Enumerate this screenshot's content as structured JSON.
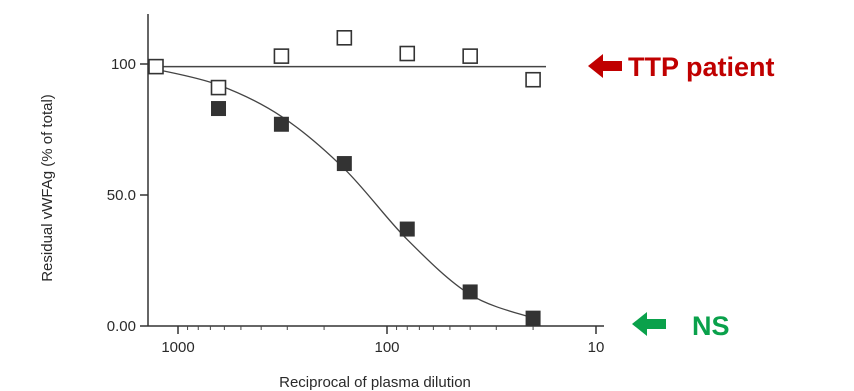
{
  "chart_data": {
    "type": "scatter",
    "xlabel": "Reciprocal of plasma dilution",
    "ylabel": "Residual vWFAg (% of total)",
    "x_scale": "log-reversed",
    "xlim": [
      1200,
      10
    ],
    "ylim": [
      0,
      120
    ],
    "x_ticks": [
      {
        "value": 1000,
        "label": "1000"
      },
      {
        "value": 100,
        "label": "100"
      },
      {
        "value": 10,
        "label": "10"
      }
    ],
    "y_ticks": [
      {
        "value": 0,
        "label": "0.00"
      },
      {
        "value": 50,
        "label": "50.0"
      },
      {
        "value": 100,
        "label": "100"
      }
    ],
    "grid": false,
    "series": [
      {
        "marker": "open-square",
        "color": "#333333",
        "x": [
          1280,
          640,
          320,
          160,
          80,
          40,
          20
        ],
        "y": [
          99,
          91,
          103,
          110,
          104,
          103,
          94
        ],
        "fit_line": {
          "type": "horizontal",
          "y": 99
        }
      },
      {
        "marker": "filled-square",
        "color": "#333333",
        "x": [
          640,
          320,
          160,
          80,
          40,
          20
        ],
        "y": [
          83,
          77,
          62,
          37,
          13,
          3
        ],
        "fit_line": {
          "type": "curve",
          "x": [
            1280,
            640,
            320,
            160,
            80,
            40,
            20
          ],
          "y": [
            98,
            92,
            80,
            60,
            33,
            12,
            3
          ]
        }
      }
    ],
    "annotations": [
      {
        "text": "TTP patient",
        "color": "#c00000",
        "arrow_color": "#c00000",
        "target_y": 99
      },
      {
        "text": "NS",
        "color": "#0aa14b",
        "arrow_color": "#0aa14b",
        "target_y": 3
      }
    ]
  }
}
